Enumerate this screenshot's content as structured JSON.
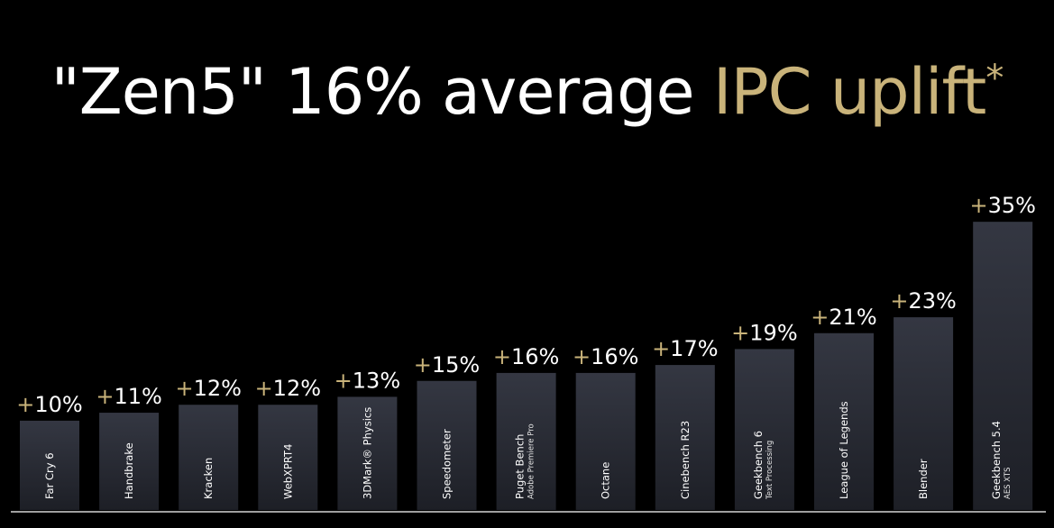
{
  "slide": {
    "title_white": "\"Zen5\" 16% average ",
    "title_gold": "IPC uplift",
    "title_asterisk": "*"
  },
  "colors": {
    "background": "#000000",
    "bar_top": "#343742",
    "bar_bottom": "#1d1f26",
    "accent_gold": "#c9b37a",
    "text": "#ffffff"
  },
  "chart_data": {
    "type": "bar",
    "categories": [
      {
        "label": "Far Cry 6",
        "sub": ""
      },
      {
        "label": "Handbrake",
        "sub": ""
      },
      {
        "label": "Kracken",
        "sub": ""
      },
      {
        "label": "WebXPRT4",
        "sub": ""
      },
      {
        "label": "3DMark® Physics",
        "sub": ""
      },
      {
        "label": "Speedometer",
        "sub": ""
      },
      {
        "label": "Puget Bench",
        "sub": "Adobe Premiere Pro"
      },
      {
        "label": "Octane",
        "sub": ""
      },
      {
        "label": "Cinebench R23",
        "sub": ""
      },
      {
        "label": "Geekbench 6",
        "sub": "Text Processing"
      },
      {
        "label": "League of Legends",
        "sub": ""
      },
      {
        "label": "Blender",
        "sub": ""
      },
      {
        "label": "Geekbench 5.4",
        "sub": "AES XTS"
      }
    ],
    "values": [
      10,
      11,
      12,
      12,
      13,
      15,
      16,
      16,
      17,
      19,
      21,
      23,
      35
    ],
    "value_prefix": "+",
    "value_suffix": "%",
    "title": "",
    "xlabel": "",
    "ylabel": "",
    "legend": "none",
    "grid": false
  }
}
